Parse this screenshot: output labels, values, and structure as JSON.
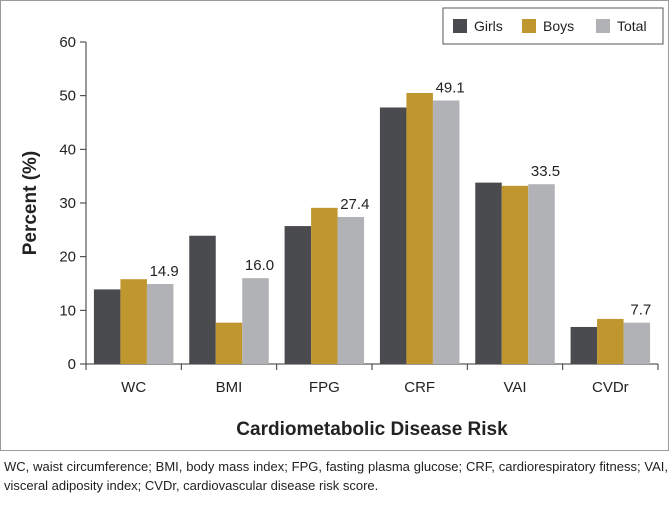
{
  "chart_data": {
    "type": "bar",
    "title": "",
    "xlabel": "Cardiometabolic Disease Risk",
    "ylabel": "Percent (%)",
    "ylim": [
      0,
      60
    ],
    "yticks": [
      0,
      10,
      20,
      30,
      40,
      50,
      60
    ],
    "grid": false,
    "legend_position": "top-right",
    "categories": [
      "WC",
      "BMI",
      "FPG",
      "CRF",
      "VAI",
      "CVDr"
    ],
    "series": [
      {
        "name": "Girls",
        "color": "#4a4b4e",
        "values": [
          13.9,
          23.9,
          25.7,
          47.8,
          33.8,
          6.9
        ]
      },
      {
        "name": "Boys",
        "color": "#c0962e",
        "values": [
          15.8,
          7.7,
          29.1,
          50.5,
          33.2,
          8.4
        ]
      },
      {
        "name": "Total",
        "color": "#b1b2b5",
        "values": [
          14.9,
          16.0,
          27.4,
          49.1,
          33.5,
          7.7
        ]
      }
    ],
    "data_labels": [
      "14.9",
      "16.0",
      "27.4",
      "49.1",
      "33.5",
      "7.7"
    ],
    "data_label_series": "Total"
  },
  "caption": "WC, waist circumference; BMI, body mass index; FPG, fasting plasma glucose; CRF, cardiorespiratory fitness; VAI, visceral adiposity index; CVDr, cardiovascular disease risk score."
}
